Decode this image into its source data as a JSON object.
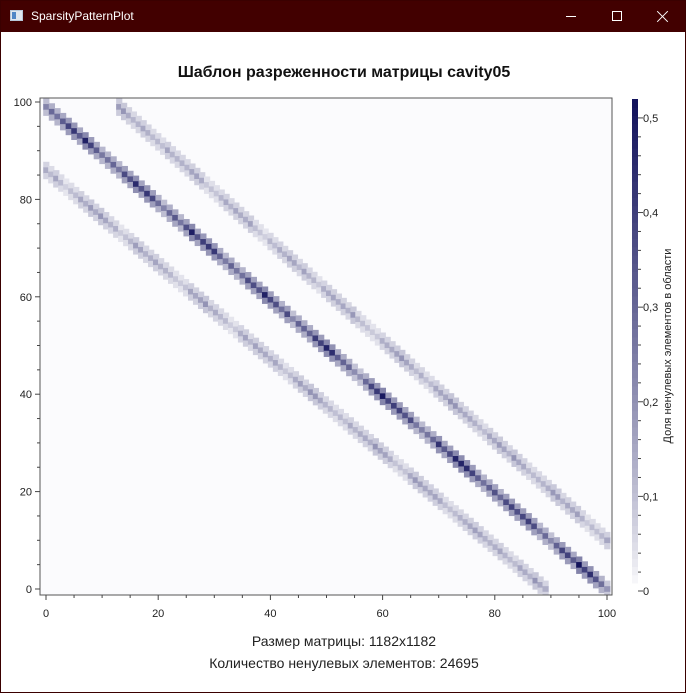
{
  "window": {
    "title": "SparsityPatternPlot",
    "controls": [
      "minimize",
      "maximize",
      "close"
    ]
  },
  "chart_data": {
    "type": "heatmap",
    "title": "Шаблон разреженности матрицы cavity05",
    "xlim": [
      0,
      100
    ],
    "ylim": [
      0,
      100
    ],
    "x_ticks": [
      "0",
      "20",
      "40",
      "60",
      "80",
      "100"
    ],
    "y_ticks": [
      "0",
      "20",
      "40",
      "60",
      "80",
      "100"
    ],
    "grid": false,
    "colorbar": {
      "label": "Доля ненулевых элементов в области",
      "range": [
        0,
        0.52
      ],
      "ticks": [
        "0",
        "0,1",
        "0,2",
        "0,3",
        "0,4",
        "0,5"
      ],
      "color_low": "#ffffff",
      "color_high": "#10105a"
    },
    "bands": [
      {
        "x_start": 0,
        "y_start": 99,
        "x_end": 100,
        "y_end": 0,
        "peak_fraction": 0.52
      },
      {
        "x_start": 13,
        "y_start": 99,
        "x_end": 100,
        "y_end": 10,
        "peak_fraction": 0.2
      },
      {
        "x_start": 0,
        "y_start": 86,
        "x_end": 89,
        "y_end": 0,
        "peak_fraction": 0.2
      }
    ]
  },
  "info": {
    "matrix_size": "Размер матрицы: 1182x1182",
    "nonzero_count": "Количество ненулевых элементов: 24695"
  }
}
